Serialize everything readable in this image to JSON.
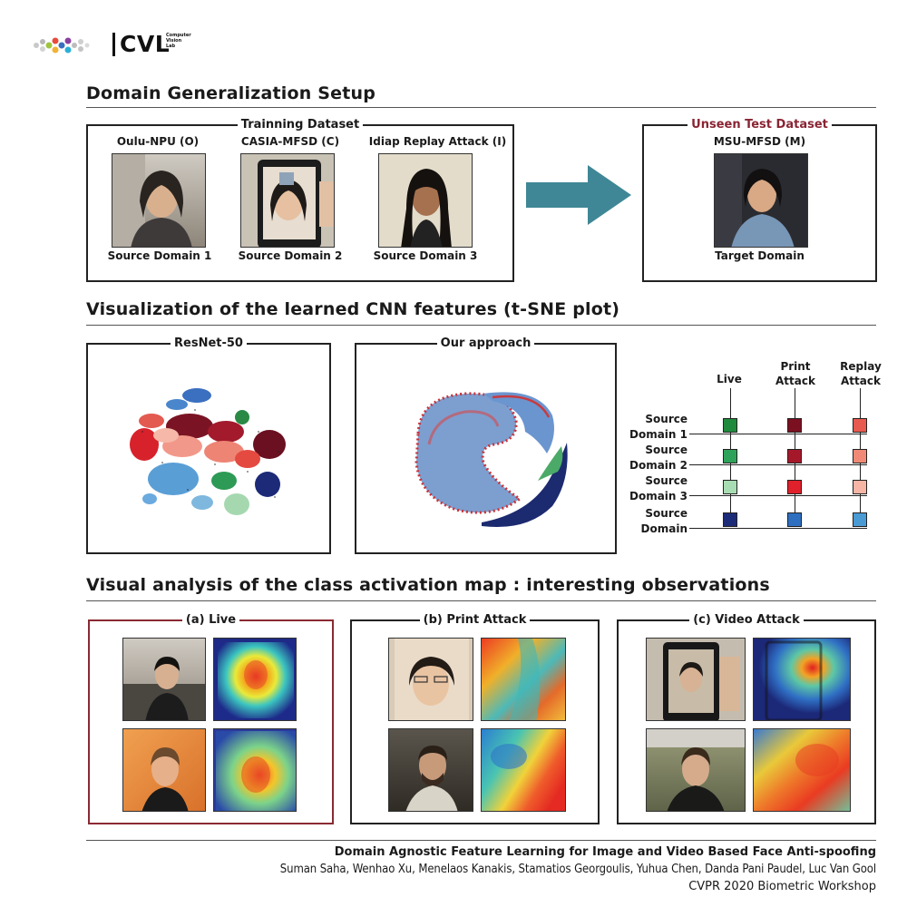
{
  "logo": {
    "text": "CVL",
    "subtitle_lines": [
      "Computer",
      "Vision",
      "Lab"
    ]
  },
  "sections": {
    "setup": "Domain Generalization Setup",
    "tsne": "Visualization of the learned CNN features (t-SNE plot)",
    "cam": "Visual analysis of the class activation map : interesting observations"
  },
  "training": {
    "title": "Trainning Dataset",
    "datasets": [
      {
        "name": "Oulu-NPU (O)",
        "domain": "Source Domain 1"
      },
      {
        "name": "CASIA-MFSD (C)",
        "domain": "Source Domain 2"
      },
      {
        "name": "Idiap Replay Attack (I)",
        "domain": "Source Domain 3"
      }
    ]
  },
  "test": {
    "title": "Unseen Test Dataset",
    "name": "MSU-MFSD (M)",
    "domain": "Target Domain"
  },
  "plots": {
    "resnet": "ResNet-50",
    "ours": "Our approach"
  },
  "legend": {
    "columns": [
      "Live",
      "Print Attack",
      "Replay Attack"
    ],
    "rows": [
      {
        "label": "Source Domain 1",
        "colors": [
          "#1f8a3c",
          "#7a1020",
          "#e85a4f"
        ]
      },
      {
        "label": "Source Domain 2",
        "colors": [
          "#2fa25a",
          "#a5182a",
          "#f08a76"
        ]
      },
      {
        "label": "Source Domain 3",
        "colors": [
          "#a8dcb2",
          "#e0202a",
          "#f7b5a5"
        ]
      },
      {
        "label": "Source Domain",
        "colors": [
          "#1c2b78",
          "#2e6fc0",
          "#4a9ad4"
        ]
      }
    ]
  },
  "cam": {
    "live": "(a) Live",
    "print": "(b) Print Attack",
    "video": "(c) Video Attack"
  },
  "colors": {
    "accent_red": "#8a2433",
    "arrow": "#3f8796"
  },
  "footer": {
    "title": "Domain Agnostic Feature Learning for Image and Video Based Face Anti-spoofing",
    "authors": "Suman Saha, Wenhao Xu, Menelaos Kanakis, Stamatios Georgoulis, Yuhua Chen, Danda Pani Paudel, Luc Van Gool",
    "venue": "CVPR 2020 Biometric Workshop"
  }
}
